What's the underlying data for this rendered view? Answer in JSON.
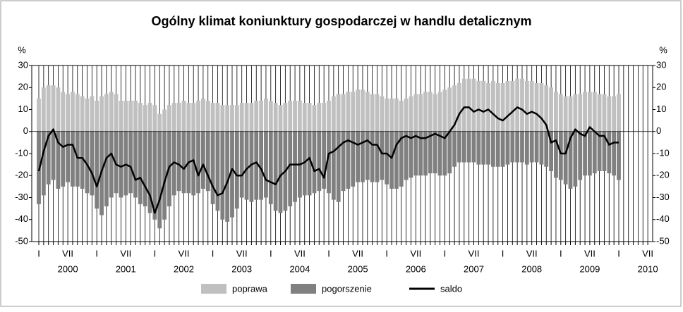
{
  "chart_data": {
    "type": "bar",
    "title": "Ogólny klimat koniunktury gospodarczej w handlu detalicznym",
    "y_unit": "%",
    "categories": [
      "I",
      null,
      null,
      null,
      null,
      null,
      "VII",
      null,
      null,
      null,
      null,
      null,
      "I",
      null,
      null,
      null,
      null,
      null,
      "VII",
      null,
      null,
      null,
      null,
      null,
      "I",
      null,
      null,
      null,
      null,
      null,
      "VII",
      null,
      null,
      null,
      null,
      null,
      "I",
      null,
      null,
      null,
      null,
      null,
      "VII",
      null,
      null,
      null,
      null,
      null,
      "I",
      null,
      null,
      null,
      null,
      null,
      "VII",
      null,
      null,
      null,
      null,
      null,
      "I",
      null,
      null,
      null,
      null,
      null,
      "VII",
      null,
      null,
      null,
      null,
      null,
      "I",
      null,
      null,
      null,
      null,
      null,
      "VII",
      null,
      null,
      null,
      null,
      null,
      "I",
      null,
      null,
      null,
      null,
      null,
      "VII",
      null,
      null,
      null,
      null,
      null,
      "I",
      null,
      null,
      null,
      null,
      null,
      "VII",
      null,
      null,
      null,
      null,
      null,
      "I",
      null,
      null,
      null,
      null,
      null,
      "VII",
      null,
      null,
      null,
      null,
      null,
      "I",
      null,
      null,
      null,
      null,
      null,
      "VII"
    ],
    "years": [
      "2000",
      "2001",
      "2002",
      "2003",
      "2004",
      "2005",
      "2006",
      "2007",
      "2008",
      "2009",
      "2010"
    ],
    "ylim": [
      -50,
      30
    ],
    "yticks": [
      -50,
      -40,
      -30,
      -20,
      -10,
      0,
      10,
      20,
      30
    ],
    "series": [
      {
        "name": "poprawa",
        "type": "bar",
        "color": "#c0c0c0",
        "values": [
          15,
          20,
          21,
          21,
          20,
          18,
          17,
          18,
          17,
          16,
          15,
          16,
          14,
          16,
          17,
          18,
          17,
          14,
          14,
          14,
          14,
          13,
          12,
          13,
          12,
          8,
          10,
          12,
          13,
          13,
          14,
          13,
          13,
          14,
          15,
          14,
          13,
          13,
          12,
          12,
          12,
          12,
          13,
          13,
          13,
          14,
          14,
          15,
          14,
          13,
          12,
          13,
          14,
          14,
          14,
          13,
          13,
          12,
          13,
          13,
          14,
          16,
          17,
          17,
          18,
          18,
          19,
          19,
          18,
          17,
          17,
          16,
          15,
          15,
          15,
          14,
          15,
          16,
          17,
          17,
          18,
          18,
          17,
          18,
          19,
          20,
          21,
          22,
          24,
          24,
          24,
          23,
          23,
          22,
          23,
          22,
          22,
          23,
          23,
          24,
          24,
          23,
          23,
          22,
          22,
          21,
          20,
          18,
          17,
          16,
          16,
          17,
          17,
          18,
          18,
          18,
          17,
          17,
          16,
          16,
          17,
          null,
          null,
          null,
          null,
          null,
          null
        ]
      },
      {
        "name": "pogorszenie",
        "type": "bar",
        "color": "#808080",
        "values": [
          -33,
          -29,
          -24,
          -22,
          -26,
          -25,
          -23,
          -25,
          -25,
          -26,
          -28,
          -29,
          -35,
          -38,
          -34,
          -30,
          -28,
          -30,
          -29,
          -28,
          -30,
          -33,
          -34,
          -37,
          -40,
          -44,
          -40,
          -34,
          -29,
          -27,
          -28,
          -28,
          -29,
          -28,
          -26,
          -27,
          -33,
          -36,
          -40,
          -41,
          -39,
          -35,
          -30,
          -31,
          -32,
          -31,
          -31,
          -30,
          -33,
          -36,
          -37,
          -36,
          -34,
          -32,
          -30,
          -29,
          -29,
          -28,
          -27,
          -26,
          -28,
          -31,
          -32,
          -27,
          -26,
          -25,
          -23,
          -23,
          -22,
          -23,
          -23,
          -22,
          -24,
          -26,
          -26,
          -25,
          -22,
          -21,
          -20,
          -20,
          -20,
          -19,
          -19,
          -20,
          -20,
          -19,
          -16,
          -14,
          -14,
          -14,
          -14,
          -15,
          -15,
          -15,
          -16,
          -16,
          -16,
          -15,
          -14,
          -14,
          -14,
          -15,
          -14,
          -14,
          -15,
          -16,
          -18,
          -21,
          -22,
          -24,
          -26,
          -25,
          -22,
          -20,
          -20,
          -19,
          -18,
          -18,
          -19,
          -20,
          -22,
          null,
          null,
          null,
          null,
          null,
          null
        ]
      },
      {
        "name": "saldo",
        "type": "line",
        "color": "#000000",
        "values": [
          -18,
          -9,
          -2,
          1,
          -5,
          -7,
          -6,
          -6,
          -12,
          -12,
          -15,
          -19,
          -25,
          -18,
          -12,
          -10,
          -15,
          -16,
          -15,
          -16,
          -22,
          -21,
          -25,
          -29,
          -37,
          -31,
          -23,
          -16,
          -14,
          -15,
          -17,
          -14,
          -13,
          -20,
          -15,
          -20,
          -25,
          -29,
          -28,
          -23,
          -17,
          -20,
          -20,
          -17,
          -15,
          -14,
          -17,
          -22,
          -23,
          -24,
          -20,
          -18,
          -15,
          -15,
          -15,
          -14,
          -12,
          -18,
          -17,
          -21,
          -10,
          -9,
          -7,
          -5,
          -4,
          -5,
          -6,
          -5,
          -4,
          -6,
          -6,
          -10,
          -10,
          -12,
          -6,
          -3,
          -2,
          -3,
          -2,
          -3,
          -3,
          -2,
          -1,
          -2,
          -3,
          0,
          3,
          8,
          11,
          11,
          9,
          10,
          9,
          10,
          8,
          6,
          5,
          7,
          9,
          11,
          10,
          8,
          9,
          8,
          6,
          3,
          -5,
          -4,
          -10,
          -10,
          -3,
          1,
          -1,
          -2,
          2,
          0,
          -2,
          -2,
          -6,
          -5,
          -5,
          null,
          null,
          null,
          null,
          null,
          null
        ]
      }
    ]
  }
}
